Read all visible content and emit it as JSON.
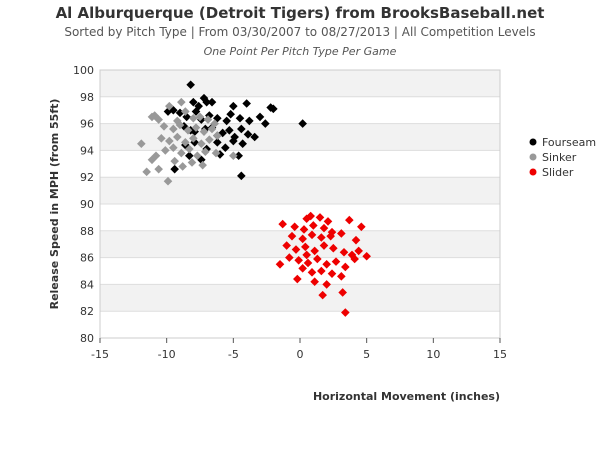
{
  "header": {
    "title": "Al Alburquerque (Detroit Tigers) from BrooksBaseball.net",
    "subtitle": "Sorted by Pitch Type | From 03/30/2007 to 08/27/2013 | All Competition Levels",
    "note": "One Point Per Pitch Type Per Game"
  },
  "chart_data": {
    "type": "scatter",
    "xlabel": "Horizontal Movement (inches)",
    "ylabel": "Release Speed in MPH (from 55ft)",
    "xlim": [
      -15,
      15
    ],
    "ylim": [
      80,
      100
    ],
    "x_ticks": [
      "-15",
      "-10",
      "-5",
      "0",
      "5",
      "10",
      "15"
    ],
    "y_ticks": [
      "80",
      "82",
      "84",
      "86",
      "88",
      "90",
      "92",
      "94",
      "96",
      "98",
      "100"
    ],
    "band_colors": [
      "#f2f2f2",
      "#ffffff"
    ],
    "legend_position": "right",
    "series": [
      {
        "name": "Fourseam",
        "color": "#000000",
        "points": [
          [
            -8.2,
            98.9
          ],
          [
            -7.2,
            97.9
          ],
          [
            -7.0,
            97.6
          ],
          [
            -6.6,
            97.6
          ],
          [
            -5.0,
            97.3
          ],
          [
            -4.0,
            97.5
          ],
          [
            -2.2,
            97.2
          ],
          [
            -2.0,
            97.1
          ],
          [
            -7.6,
            97.3
          ],
          [
            -8.0,
            97.6
          ],
          [
            -9.5,
            97.0
          ],
          [
            -9.0,
            96.8
          ],
          [
            -8.5,
            96.5
          ],
          [
            -7.8,
            96.9
          ],
          [
            -7.4,
            96.3
          ],
          [
            -6.8,
            96.6
          ],
          [
            -6.2,
            96.4
          ],
          [
            -5.5,
            96.2
          ],
          [
            -5.2,
            96.7
          ],
          [
            -4.5,
            96.4
          ],
          [
            -3.8,
            96.2
          ],
          [
            -3.0,
            96.5
          ],
          [
            -2.6,
            96.0
          ],
          [
            -8.7,
            95.8
          ],
          [
            -8.2,
            95.5
          ],
          [
            -7.9,
            95.4
          ],
          [
            -7.1,
            95.6
          ],
          [
            -6.6,
            95.7
          ],
          [
            -6.2,
            95.1
          ],
          [
            -5.8,
            95.3
          ],
          [
            -5.3,
            95.5
          ],
          [
            -4.9,
            95.0
          ],
          [
            -4.4,
            95.6
          ],
          [
            -3.9,
            95.2
          ],
          [
            -3.4,
            95.0
          ],
          [
            -8.6,
            94.4
          ],
          [
            -7.9,
            94.6
          ],
          [
            -7.0,
            94.1
          ],
          [
            -6.2,
            94.6
          ],
          [
            -5.6,
            94.2
          ],
          [
            -5.0,
            94.7
          ],
          [
            -4.3,
            94.5
          ],
          [
            -8.3,
            93.6
          ],
          [
            -7.4,
            93.3
          ],
          [
            -6.0,
            93.7
          ],
          [
            -4.6,
            93.6
          ],
          [
            -9.4,
            92.6
          ],
          [
            -4.4,
            92.1
          ],
          [
            0.2,
            96.0
          ],
          [
            -9.9,
            96.9
          ]
        ]
      },
      {
        "name": "Sinker",
        "color": "#999999",
        "points": [
          [
            -11.1,
            96.5
          ],
          [
            -10.6,
            96.3
          ],
          [
            -10.9,
            96.6
          ],
          [
            -9.8,
            97.3
          ],
          [
            -8.9,
            97.6
          ],
          [
            -8.6,
            96.9
          ],
          [
            -9.2,
            96.2
          ],
          [
            -8.0,
            96.4
          ],
          [
            -7.5,
            96.5
          ],
          [
            -6.9,
            96.3
          ],
          [
            -10.2,
            95.8
          ],
          [
            -9.5,
            95.6
          ],
          [
            -9.0,
            95.9
          ],
          [
            -8.4,
            95.5
          ],
          [
            -7.8,
            95.7
          ],
          [
            -7.2,
            95.4
          ],
          [
            -6.6,
            95.6
          ],
          [
            -10.4,
            94.9
          ],
          [
            -9.8,
            94.7
          ],
          [
            -9.2,
            95.0
          ],
          [
            -8.6,
            94.6
          ],
          [
            -8.0,
            94.9
          ],
          [
            -7.4,
            94.5
          ],
          [
            -6.8,
            94.8
          ],
          [
            -6.2,
            95.1
          ],
          [
            -10.1,
            94.0
          ],
          [
            -9.5,
            94.2
          ],
          [
            -8.9,
            93.8
          ],
          [
            -8.3,
            94.1
          ],
          [
            -7.7,
            93.6
          ],
          [
            -7.1,
            93.9
          ],
          [
            -6.3,
            93.8
          ],
          [
            -11.9,
            94.5
          ],
          [
            -10.8,
            93.6
          ],
          [
            -11.1,
            93.3
          ],
          [
            -9.4,
            93.2
          ],
          [
            -8.8,
            92.8
          ],
          [
            -8.1,
            93.1
          ],
          [
            -10.6,
            92.6
          ],
          [
            -11.5,
            92.4
          ],
          [
            -9.9,
            91.7
          ],
          [
            -5.0,
            93.6
          ],
          [
            -6.4,
            96.0
          ],
          [
            -7.3,
            92.9
          ]
        ]
      },
      {
        "name": "Slider",
        "color": "#ee0000",
        "points": [
          [
            0.5,
            88.9
          ],
          [
            0.8,
            89.1
          ],
          [
            1.5,
            89.0
          ],
          [
            2.1,
            88.7
          ],
          [
            3.7,
            88.8
          ],
          [
            4.6,
            88.3
          ],
          [
            -1.3,
            88.5
          ],
          [
            -0.4,
            88.3
          ],
          [
            0.3,
            88.1
          ],
          [
            1.0,
            88.4
          ],
          [
            1.8,
            88.2
          ],
          [
            2.4,
            87.9
          ],
          [
            -0.6,
            87.6
          ],
          [
            0.2,
            87.4
          ],
          [
            0.9,
            87.7
          ],
          [
            1.6,
            87.5
          ],
          [
            2.3,
            87.6
          ],
          [
            3.1,
            87.8
          ],
          [
            4.2,
            87.3
          ],
          [
            -1.0,
            86.9
          ],
          [
            -0.3,
            86.6
          ],
          [
            0.4,
            86.8
          ],
          [
            1.1,
            86.5
          ],
          [
            1.8,
            86.9
          ],
          [
            2.5,
            86.7
          ],
          [
            3.3,
            86.4
          ],
          [
            3.9,
            86.2
          ],
          [
            4.4,
            86.5
          ],
          [
            5.0,
            86.1
          ],
          [
            -0.8,
            86.0
          ],
          [
            -0.1,
            85.8
          ],
          [
            0.6,
            85.6
          ],
          [
            1.3,
            85.9
          ],
          [
            2.0,
            85.5
          ],
          [
            2.7,
            85.7
          ],
          [
            3.4,
            85.3
          ],
          [
            4.1,
            85.9
          ],
          [
            -1.5,
            85.5
          ],
          [
            0.2,
            85.2
          ],
          [
            0.9,
            84.9
          ],
          [
            1.6,
            85.0
          ],
          [
            2.4,
            84.8
          ],
          [
            3.1,
            84.6
          ],
          [
            1.1,
            84.2
          ],
          [
            2.0,
            84.0
          ],
          [
            1.7,
            83.2
          ],
          [
            3.2,
            83.4
          ],
          [
            3.4,
            81.9
          ],
          [
            -0.2,
            84.4
          ],
          [
            0.5,
            86.2
          ]
        ]
      }
    ]
  }
}
